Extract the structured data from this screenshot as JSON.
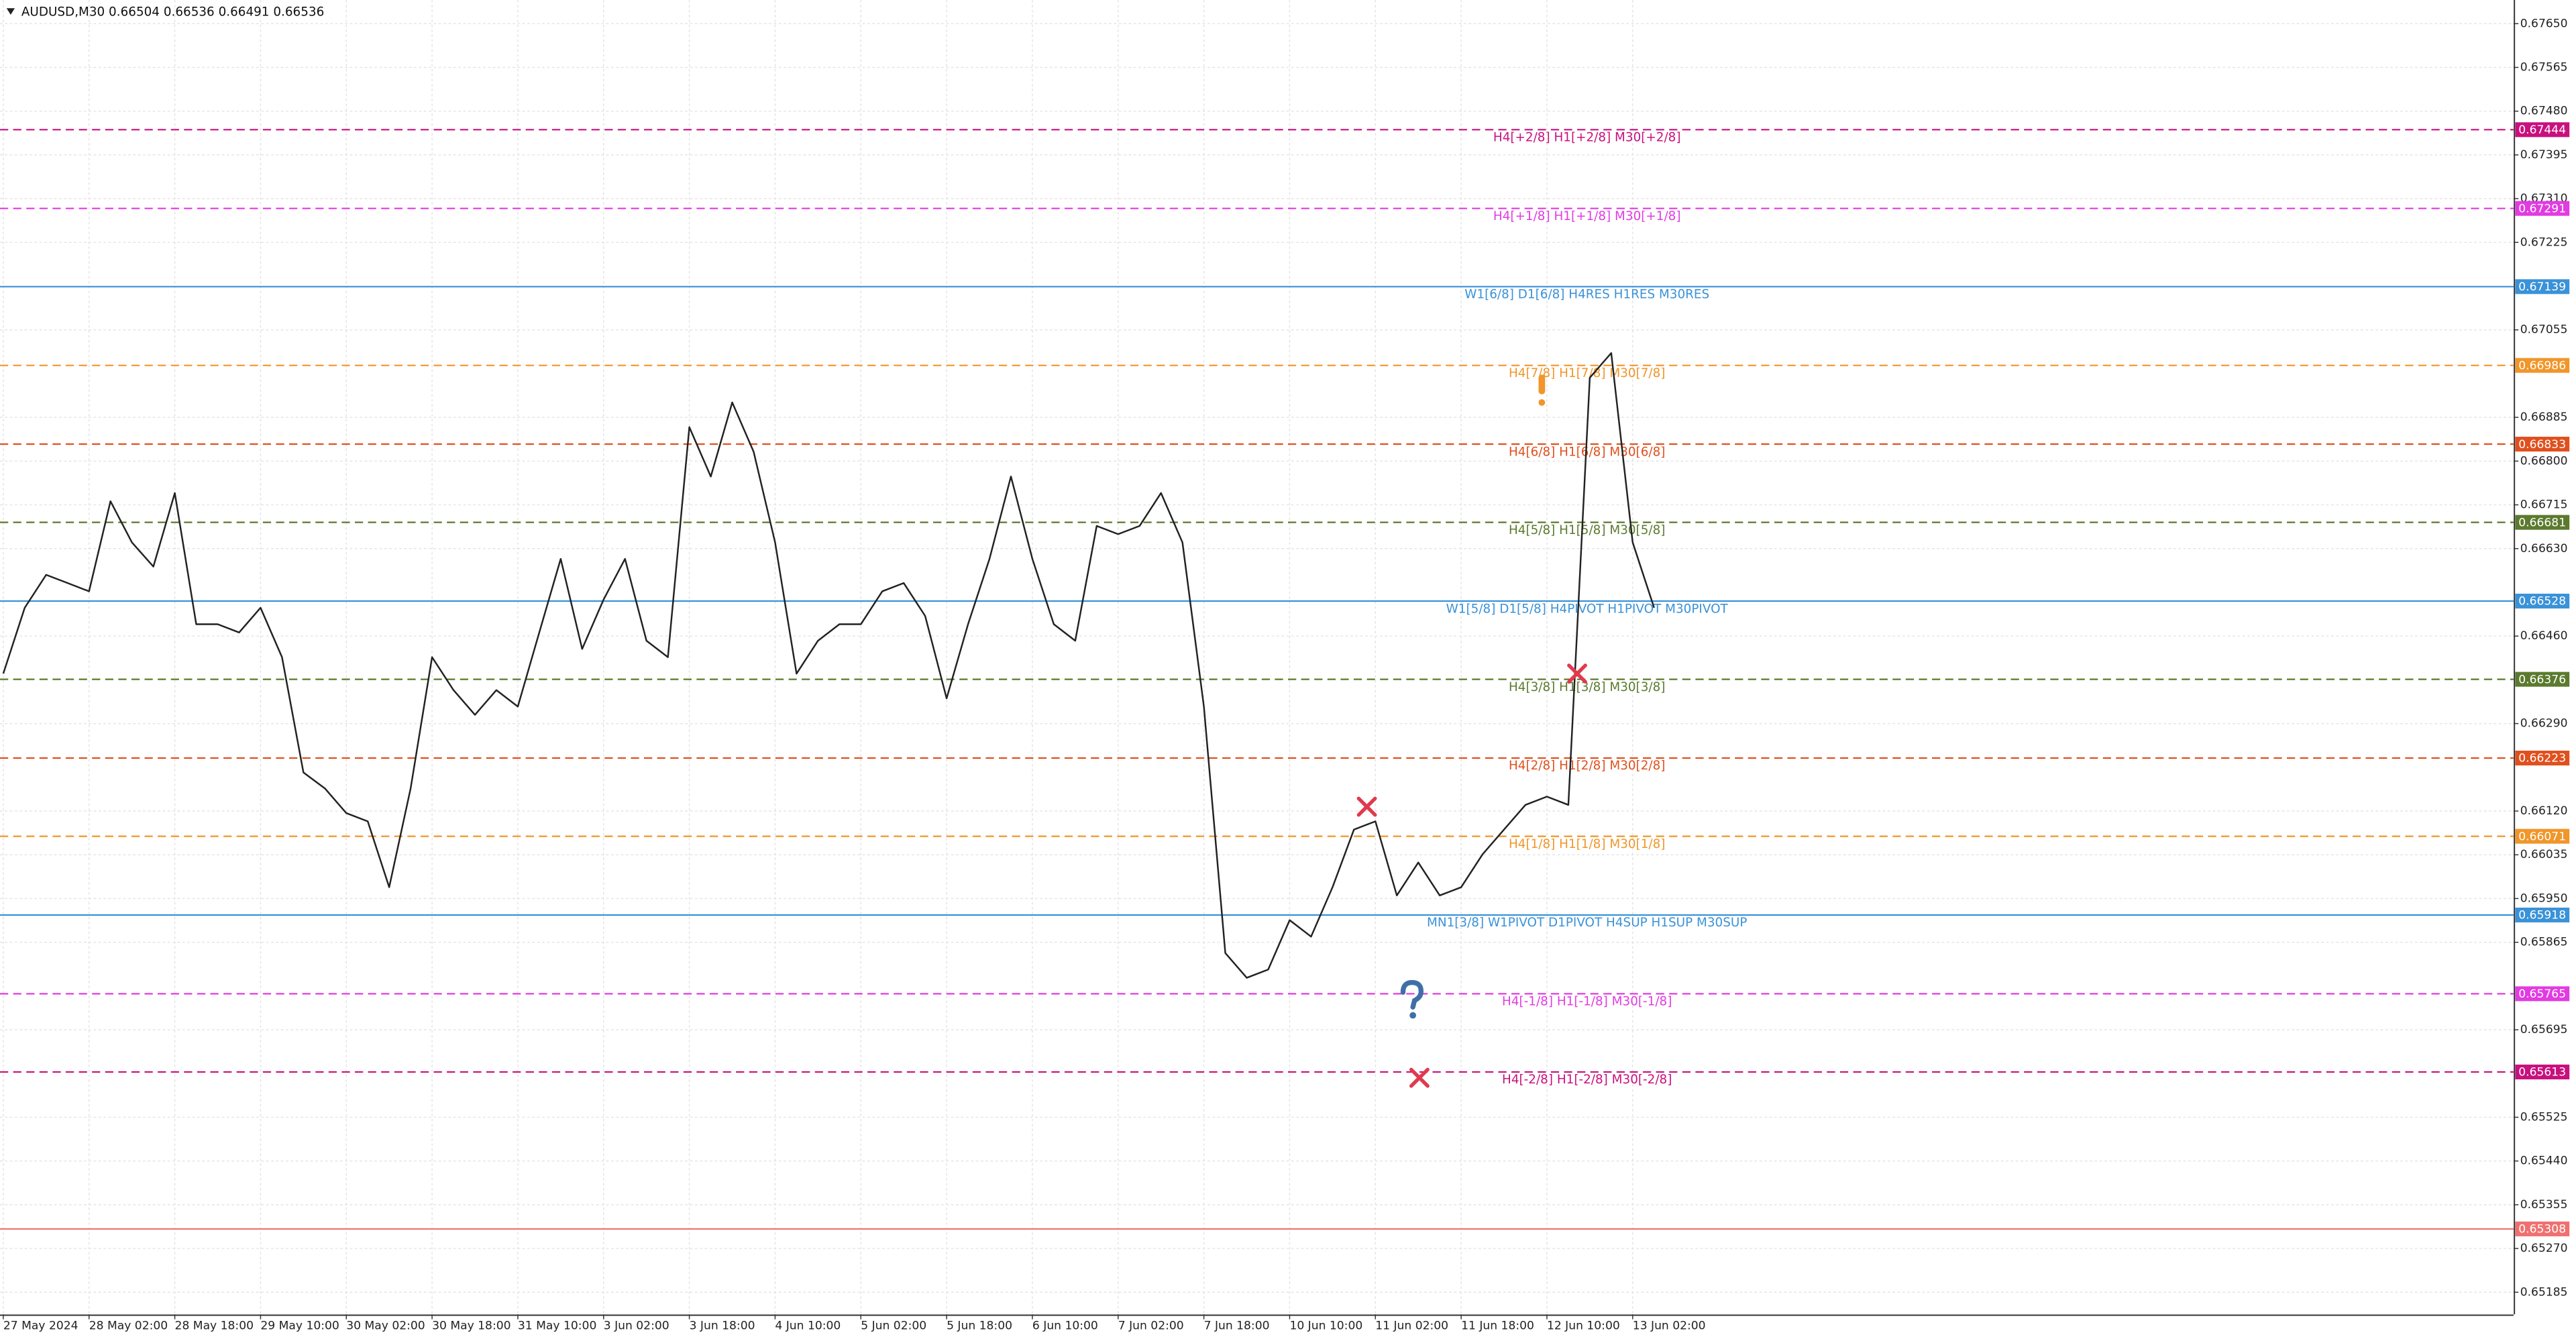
{
  "chart_data": {
    "type": "line",
    "title": "AUDUSD,M30 0.66504 0.66536 0.66491 0.66536",
    "categories": [
      "27 May 2024",
      null,
      null,
      null,
      "28 May 02:00",
      null,
      null,
      null,
      "28 May 18:00",
      null,
      null,
      null,
      "29 May 10:00",
      null,
      null,
      null,
      "30 May 02:00",
      null,
      null,
      null,
      "30 May 18:00",
      null,
      null,
      null,
      "31 May 10:00",
      null,
      null,
      null,
      "3 Jun 02:00",
      null,
      null,
      null,
      "3 Jun 18:00",
      null,
      null,
      null,
      "4 Jun 10:00",
      null,
      null,
      null,
      "5 Jun 02:00",
      null,
      null,
      null,
      "5 Jun 18:00",
      null,
      null,
      null,
      "6 Jun 10:00",
      null,
      null,
      null,
      "7 Jun 02:00",
      null,
      null,
      null,
      "7 Jun 18:00",
      null,
      null,
      null,
      "10 Jun 10:00",
      null,
      null,
      null,
      "11 Jun 02:00",
      null,
      null,
      null,
      "11 Jun 18:00",
      null,
      null,
      null,
      "12 Jun 10:00",
      null,
      null,
      null,
      "13 Jun 02:00",
      null
    ],
    "series": [
      {
        "color": "#222222",
        "values": [
          0.66387,
          0.66515,
          0.66579,
          0.66563,
          0.66547,
          0.66722,
          0.66642,
          0.66595,
          0.66738,
          0.66483,
          0.66483,
          0.66467,
          0.66515,
          0.66419,
          0.66195,
          0.66164,
          0.66116,
          0.661,
          0.65972,
          0.66164,
          0.66419,
          0.66355,
          0.66307,
          0.66355,
          0.66323,
          0.66467,
          0.6661,
          0.66435,
          0.66531,
          0.6661,
          0.66451,
          0.66419,
          0.66866,
          0.6677,
          0.66914,
          0.66818,
          0.66642,
          0.66387,
          0.66451,
          0.66483,
          0.66483,
          0.66547,
          0.66563,
          0.66499,
          0.66339,
          0.66483,
          0.6661,
          0.6677,
          0.6661,
          0.66483,
          0.66451,
          0.66674,
          0.66658,
          0.66674,
          0.66738,
          0.66642,
          0.66323,
          0.65844,
          0.65796,
          0.65812,
          0.65908,
          0.65876,
          0.65972,
          0.66084,
          0.661,
          0.65956,
          0.6602,
          0.65956,
          0.65972,
          0.66036,
          0.66084,
          0.66132,
          0.66148,
          0.66132,
          0.66962,
          0.6701,
          0.66642,
          0.66515
        ]
      }
    ],
    "ylim": [
      0.65142,
      0.67696
    ],
    "yticks": [
      {
        "value": 0.6765,
        "label": "0.67650"
      },
      0.67565,
      {
        "value": 0.6748,
        "label": "0.67480"
      },
      0.67395,
      {
        "value": 0.6731,
        "label": "0.67310"
      },
      0.67225,
      0.67055,
      0.66885,
      {
        "value": 0.668,
        "label": "0.66800"
      },
      0.66715,
      {
        "value": 0.6663,
        "label": "0.66630"
      },
      {
        "value": 0.6646,
        "label": "0.66460"
      },
      {
        "value": 0.6629,
        "label": "0.66290"
      },
      {
        "value": 0.6612,
        "label": "0.66120"
      },
      0.66035,
      {
        "value": 0.6595,
        "label": "0.65950"
      },
      0.65865,
      0.65695,
      0.65525,
      {
        "value": 0.6544,
        "label": "0.65440"
      },
      0.65355,
      {
        "value": 0.6527,
        "label": "0.65270"
      },
      0.65185
    ],
    "grid": true,
    "levels": [
      {
        "value": 0.67444,
        "text": "H4[+2/8] H1[+2/8] M30[+2/8]",
        "color": "#c8107e",
        "style": "dashed"
      },
      {
        "value": 0.67291,
        "text": "H4[+1/8] H1[+1/8] M30[+1/8]",
        "color": "#e23be2",
        "style": "dashed"
      },
      {
        "value": 0.67139,
        "text": "W1[6/8] D1[6/8] H4RES H1RES M30RES",
        "color": "#3a92d8",
        "style": "solid"
      },
      {
        "value": 0.66986,
        "text": "H4[7/8] H1[7/8] M30[7/8]",
        "color": "#f0962a",
        "style": "dashed"
      },
      {
        "value": 0.66833,
        "text": "H4[6/8] H1[6/8] M30[6/8]",
        "color": "#e0501e",
        "style": "dashed"
      },
      {
        "value": 0.66681,
        "text": "H4[5/8] H1[5/8] M30[5/8]",
        "color": "#5b7a2e",
        "style": "dashed"
      },
      {
        "value": 0.66528,
        "text": "W1[5/8] D1[5/8] H4PIVOT H1PIVOT M30PIVOT",
        "color": "#3a92d8",
        "style": "solid"
      },
      {
        "value": 0.66376,
        "text": "H4[3/8] H1[3/8] M30[3/8]",
        "color": "#5b7a2e",
        "style": "dashed"
      },
      {
        "value": 0.66223,
        "text": "H4[2/8] H1[2/8] M30[2/8]",
        "color": "#e0501e",
        "style": "dashed"
      },
      {
        "value": 0.66071,
        "text": "H4[1/8] H1[1/8] M30[1/8]",
        "color": "#f0962a",
        "style": "dashed"
      },
      {
        "value": 0.65918,
        "text": "MN1[3/8] W1PIVOT D1PIVOT H4SUP H1SUP M30SUP",
        "color": "#3a92d8",
        "style": "solid"
      },
      {
        "value": 0.65765,
        "text": "H4[-1/8] H1[-1/8] M30[-1/8]",
        "color": "#e23be2",
        "style": "dashed"
      },
      {
        "value": 0.65613,
        "text": "H4[-2/8] H1[-2/8] M30[-2/8]",
        "color": "#c8107e",
        "style": "dashed"
      },
      {
        "value": 0.65308,
        "color": "#f07070",
        "style": "solid"
      }
    ]
  }
}
